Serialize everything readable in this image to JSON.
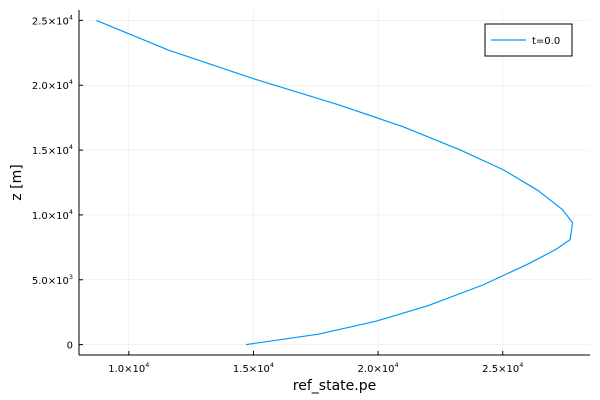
{
  "chart_data": {
    "type": "line",
    "xlabel": "ref_state.pe",
    "ylabel": "z [m]",
    "xlim": [
      8000,
      28500
    ],
    "ylim": [
      -800,
      25800
    ],
    "grid": true,
    "legend": {
      "position": "top-right",
      "entries": [
        "t=0.0"
      ]
    },
    "x_ticks": [
      {
        "value": 10000,
        "mant": "1.0×10",
        "exp": "4"
      },
      {
        "value": 15000,
        "mant": "1.5×10",
        "exp": "4"
      },
      {
        "value": 20000,
        "mant": "2.0×10",
        "exp": "4"
      },
      {
        "value": 25000,
        "mant": "2.5×10",
        "exp": "4"
      }
    ],
    "y_ticks": [
      {
        "value": 0,
        "mant": "0",
        "exp": ""
      },
      {
        "value": 5000,
        "mant": "5.0×10",
        "exp": "3"
      },
      {
        "value": 10000,
        "mant": "1.0×10",
        "exp": "4"
      },
      {
        "value": 15000,
        "mant": "1.5×10",
        "exp": "4"
      },
      {
        "value": 20000,
        "mant": "2.0×10",
        "exp": "4"
      },
      {
        "value": 25000,
        "mant": "2.5×10",
        "exp": "4"
      }
    ],
    "series": [
      {
        "name": "t=0.0",
        "color": "#009af9",
        "x": [
          14700,
          17600,
          19900,
          22000,
          24200,
          26000,
          27100,
          27700,
          27800,
          27400,
          26400,
          25000,
          23300,
          21000,
          18400,
          15000,
          11600,
          8700
        ],
        "y": [
          0,
          800,
          1800,
          3000,
          4600,
          6200,
          7300,
          8100,
          9400,
          10400,
          11900,
          13500,
          15000,
          16800,
          18500,
          20500,
          22700,
          25000
        ]
      }
    ]
  }
}
